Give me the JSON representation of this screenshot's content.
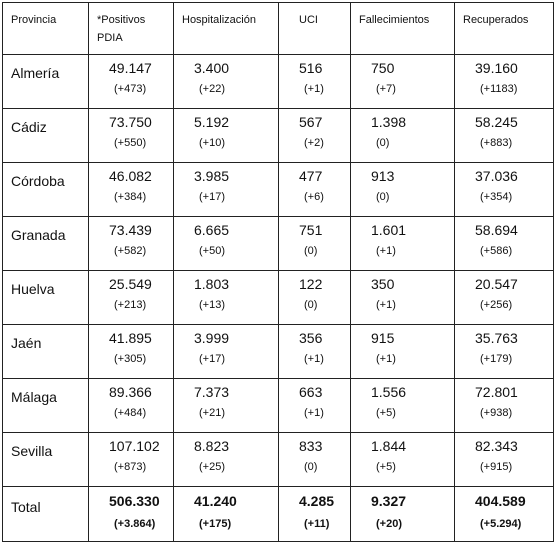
{
  "headers": [
    "Provincia",
    "*Positivos PDIA",
    "Hospitalización",
    "UCI",
    "Fallecimientos",
    "Recuperados"
  ],
  "rows": [
    {
      "provincia": "Almería",
      "cells": [
        {
          "v": "49.147",
          "d": "(+473)"
        },
        {
          "v": "3.400",
          "d": "(+22)"
        },
        {
          "v": "516",
          "d": "(+1)"
        },
        {
          "v": "750",
          "d": "(+7)"
        },
        {
          "v": "39.160",
          "d": "(+1183)"
        }
      ]
    },
    {
      "provincia": "Cádiz",
      "cells": [
        {
          "v": "73.750",
          "d": "(+550)"
        },
        {
          "v": "5.192",
          "d": "(+10)"
        },
        {
          "v": "567",
          "d": "(+2)"
        },
        {
          "v": "1.398",
          "d": "(0)"
        },
        {
          "v": "58.245",
          "d": "(+883)"
        }
      ]
    },
    {
      "provincia": "Córdoba",
      "cells": [
        {
          "v": "46.082",
          "d": "(+384)"
        },
        {
          "v": "3.985",
          "d": "(+17)"
        },
        {
          "v": "477",
          "d": "(+6)"
        },
        {
          "v": "913",
          "d": "(0)"
        },
        {
          "v": "37.036",
          "d": "(+354)"
        }
      ]
    },
    {
      "provincia": "Granada",
      "cells": [
        {
          "v": "73.439",
          "d": "(+582)"
        },
        {
          "v": "6.665",
          "d": "(+50)"
        },
        {
          "v": "751",
          "d": "(0)"
        },
        {
          "v": "1.601",
          "d": "(+1)"
        },
        {
          "v": "58.694",
          "d": "(+586)"
        }
      ]
    },
    {
      "provincia": "Huelva",
      "cells": [
        {
          "v": "25.549",
          "d": "(+213)"
        },
        {
          "v": "1.803",
          "d": "(+13)"
        },
        {
          "v": "122",
          "d": "(0)"
        },
        {
          "v": "350",
          "d": "(+1)"
        },
        {
          "v": "20.547",
          "d": "(+256)"
        }
      ]
    },
    {
      "provincia": "Jaén",
      "cells": [
        {
          "v": "41.895",
          "d": "(+305)"
        },
        {
          "v": "3.999",
          "d": "(+17)"
        },
        {
          "v": "356",
          "d": "(+1)"
        },
        {
          "v": "915",
          "d": "(+1)"
        },
        {
          "v": "35.763",
          "d": "(+179)"
        }
      ]
    },
    {
      "provincia": "Málaga",
      "cells": [
        {
          "v": "89.366",
          "d": "(+484)"
        },
        {
          "v": "7.373",
          "d": "(+21)"
        },
        {
          "v": "663",
          "d": "(+1)"
        },
        {
          "v": "1.556",
          "d": "(+5)"
        },
        {
          "v": "72.801",
          "d": "(+938)"
        }
      ]
    },
    {
      "provincia": "Sevilla",
      "cells": [
        {
          "v": "107.102",
          "d": "(+873)"
        },
        {
          "v": "8.823",
          "d": "(+25)"
        },
        {
          "v": "833",
          "d": "(0)"
        },
        {
          "v": "1.844",
          "d": "(+5)"
        },
        {
          "v": "82.343",
          "d": "(+915)"
        }
      ]
    }
  ],
  "total": {
    "label": "Total",
    "cells": [
      {
        "v": "506.330",
        "d": "(+3.864)"
      },
      {
        "v": "41.240",
        "d": "(+175)"
      },
      {
        "v": "4.285",
        "d": "(+11)"
      },
      {
        "v": "9.327",
        "d": "(+20)"
      },
      {
        "v": "404.589",
        "d": "(+5.294)"
      }
    ]
  }
}
